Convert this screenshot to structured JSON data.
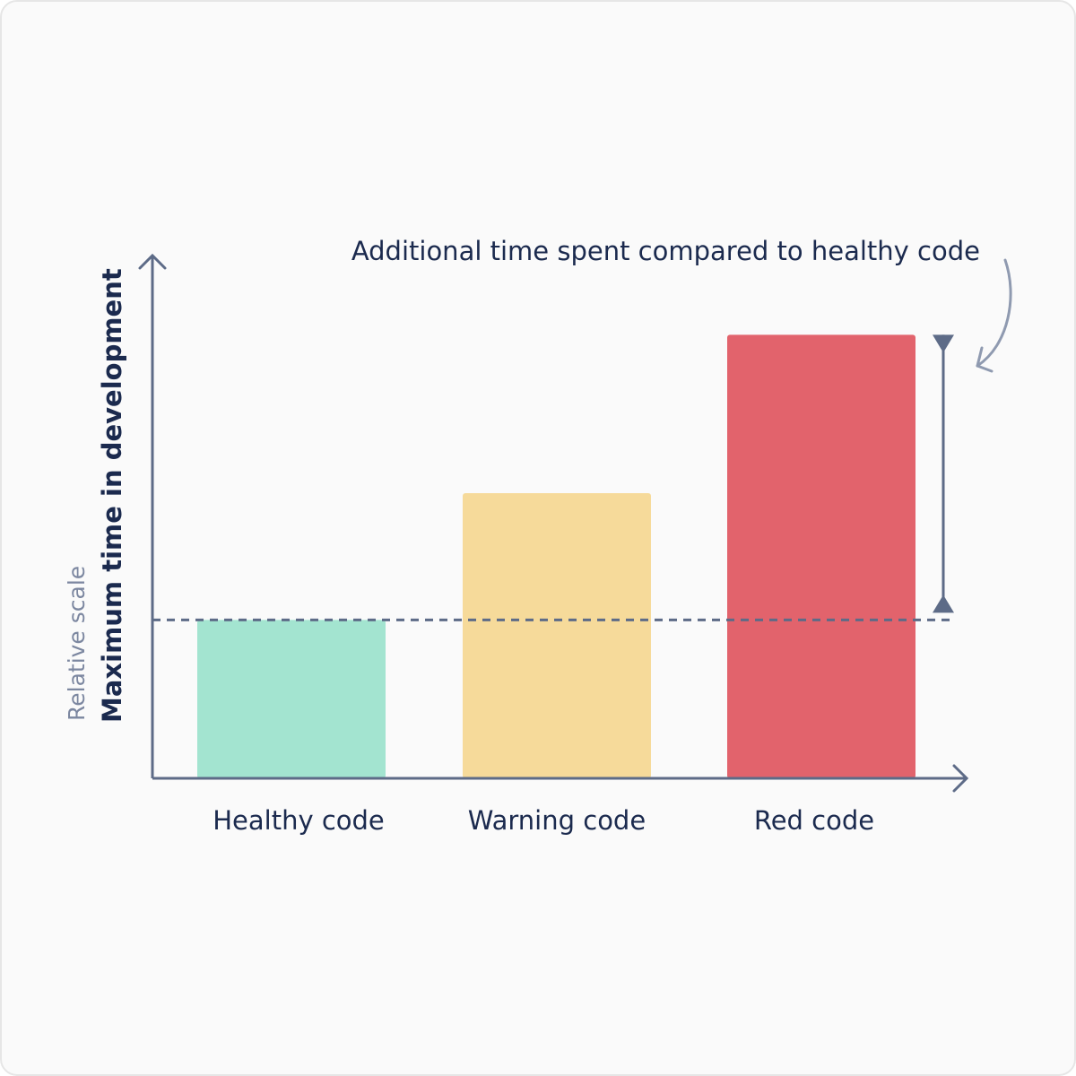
{
  "chart_data": {
    "type": "bar",
    "y_label": "Maximum time in development",
    "y_sublabel": "Relative scale",
    "annotation": "Additional time spent compared to healthy code",
    "categories": [
      "Healthy code",
      "Warning code",
      "Red code"
    ],
    "values": [
      1,
      1.8,
      2.8
    ],
    "colors": [
      "#a3e4d0",
      "#f6da9a",
      "#e2636c"
    ],
    "ylim": [
      0,
      3.3
    ],
    "axis_color": "#5d6b87"
  }
}
